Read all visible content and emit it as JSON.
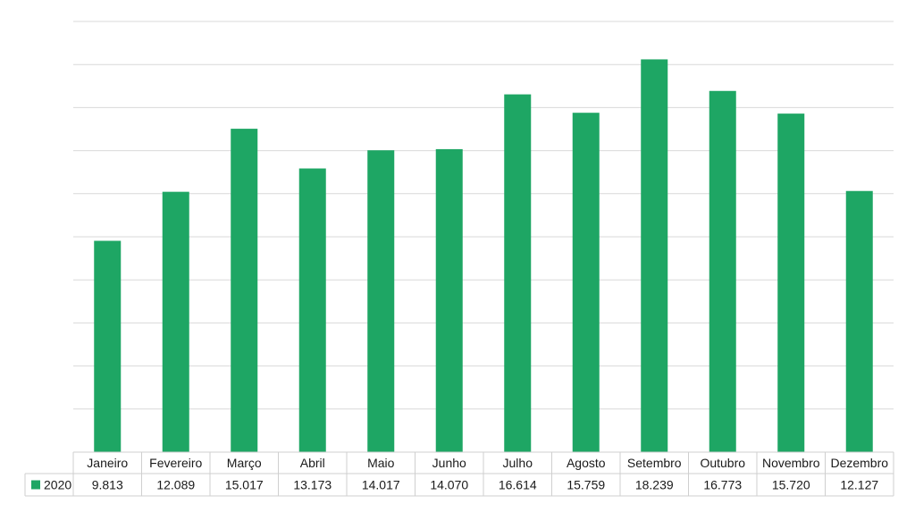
{
  "chart_data": {
    "type": "bar",
    "categories": [
      "Janeiro",
      "Fevereiro",
      "Março",
      "Abril",
      "Maio",
      "Junho",
      "Julho",
      "Agosto",
      "Setembro",
      "Outubro",
      "Novembro",
      "Dezembro"
    ],
    "series": [
      {
        "name": "2020",
        "values": [
          9813,
          12089,
          15017,
          13173,
          14017,
          14070,
          16614,
          15759,
          18239,
          16773,
          15720,
          12127
        ],
        "value_labels": [
          "9.813",
          "12.089",
          "15.017",
          "13.173",
          "14.017",
          "14.070",
          "16.614",
          "15.759",
          "18.239",
          "16.773",
          "15.720",
          "12.127"
        ],
        "color": "#1ea664"
      }
    ],
    "ylim": [
      0,
      20000
    ],
    "y_gridline_step": 2000,
    "grid": true,
    "y_tick_labels_shown": false,
    "legend": "data-table-left",
    "data_table": true
  }
}
